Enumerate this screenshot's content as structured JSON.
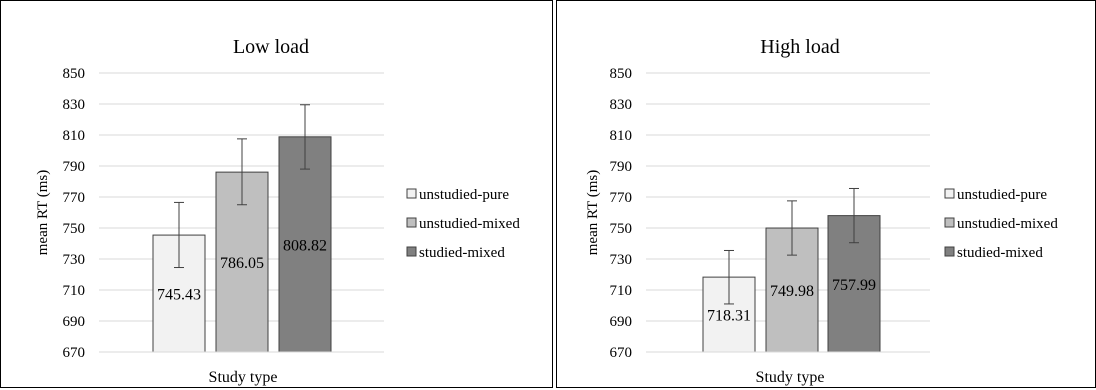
{
  "chart_data": [
    {
      "type": "bar",
      "title": "Low load",
      "xlabel": "Study type",
      "ylabel": "mean RT (ms)",
      "ylim": [
        670,
        850
      ],
      "yticks": [
        670,
        690,
        710,
        730,
        750,
        770,
        790,
        810,
        830,
        850
      ],
      "grid": true,
      "legend_position": "right",
      "series": [
        {
          "name": "unstudied-pure",
          "value": 745.43,
          "label": "745.43",
          "error": [
            724.5,
            766.5
          ],
          "color": "#f2f2f2"
        },
        {
          "name": "unstudied-mixed",
          "value": 786.05,
          "label": "786.05",
          "error": [
            765.0,
            807.5
          ],
          "color": "#bfbfbf"
        },
        {
          "name": "studied-mixed",
          "value": 808.82,
          "label": "808.82",
          "error": [
            788.0,
            829.5
          ],
          "color": "#808080"
        }
      ]
    },
    {
      "type": "bar",
      "title": "High load",
      "xlabel": "Study type",
      "ylabel": "mean RT (ms)",
      "ylim": [
        670,
        850
      ],
      "yticks": [
        670,
        690,
        710,
        730,
        750,
        770,
        790,
        810,
        830,
        850
      ],
      "grid": true,
      "legend_position": "right",
      "series": [
        {
          "name": "unstudied-pure",
          "value": 718.31,
          "label": "718.31",
          "error": [
            701.0,
            735.5
          ],
          "color": "#f2f2f2"
        },
        {
          "name": "unstudied-mixed",
          "value": 749.98,
          "label": "749.98",
          "error": [
            732.5,
            767.5
          ],
          "color": "#bfbfbf"
        },
        {
          "name": "studied-mixed",
          "value": 757.99,
          "label": "757.99",
          "error": [
            740.5,
            775.5
          ],
          "color": "#808080"
        }
      ]
    }
  ]
}
